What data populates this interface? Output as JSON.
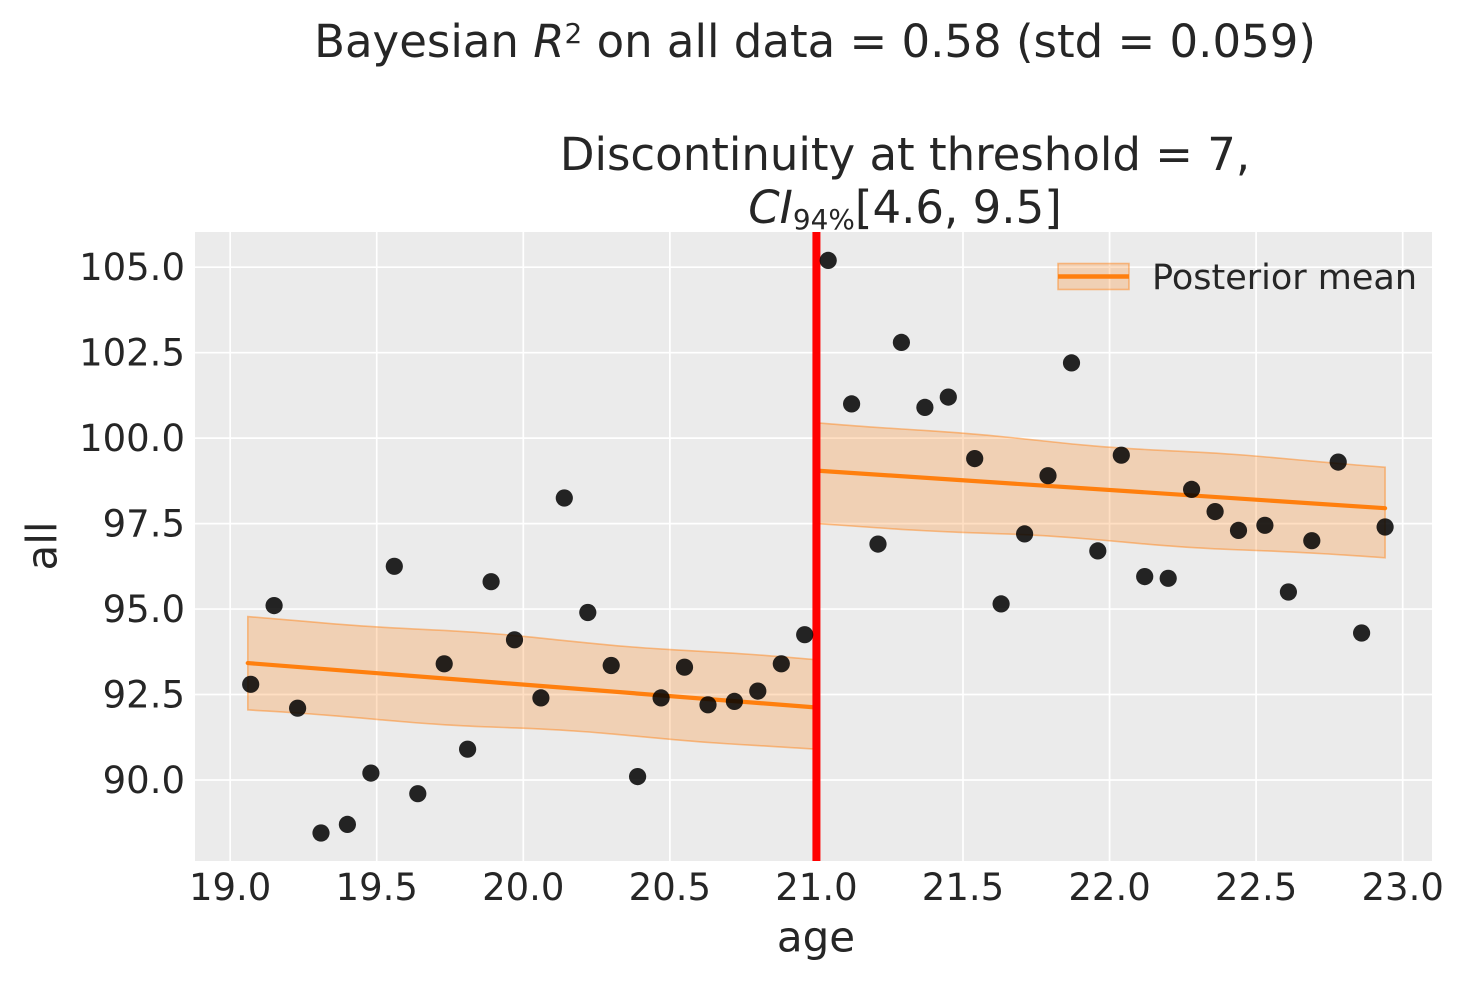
{
  "figure_title": {
    "prefix": "Bayesian ",
    "r_symbol": "R",
    "r_exponent": "2",
    "suffix": " on all data = 0.58 (std = 0.059)"
  },
  "axes_title": {
    "line1": "Discontinuity at threshold = 7,",
    "ci_symbol": "CI",
    "ci_subscript": "94%",
    "ci_interval": "[4.6, 9.5]"
  },
  "legend": {
    "label": "Posterior mean",
    "position": "upper right"
  },
  "chart_data": {
    "type": "scatter",
    "title": "Bayesian R^2 on all data = 0.58 (std = 0.059)",
    "subtitle": "Discontinuity at threshold = 7, CI_94%[4.6, 9.5]",
    "xlabel": "age",
    "ylabel": "all",
    "xlim": [
      18.88,
      23.1
    ],
    "ylim": [
      87.63,
      106.03
    ],
    "x_ticks": [
      19.0,
      19.5,
      20.0,
      20.5,
      21.0,
      21.5,
      22.0,
      22.5,
      23.0
    ],
    "y_ticks": [
      90.0,
      92.5,
      95.0,
      97.5,
      100.0,
      102.5,
      105.0
    ],
    "grid": true,
    "threshold_x": 21.0,
    "scatter_points": [
      [
        19.07,
        92.8
      ],
      [
        19.15,
        95.1
      ],
      [
        19.23,
        92.1
      ],
      [
        19.31,
        88.45
      ],
      [
        19.4,
        88.7
      ],
      [
        19.48,
        90.2
      ],
      [
        19.56,
        96.25
      ],
      [
        19.64,
        89.6
      ],
      [
        19.73,
        93.4
      ],
      [
        19.81,
        90.9
      ],
      [
        19.89,
        95.8
      ],
      [
        19.97,
        94.1
      ],
      [
        20.06,
        92.4
      ],
      [
        20.14,
        98.25
      ],
      [
        20.22,
        94.9
      ],
      [
        20.3,
        93.35
      ],
      [
        20.39,
        90.1
      ],
      [
        20.47,
        92.4
      ],
      [
        20.55,
        93.3
      ],
      [
        20.63,
        92.2
      ],
      [
        20.72,
        92.3
      ],
      [
        20.8,
        92.6
      ],
      [
        20.88,
        93.4
      ],
      [
        20.96,
        94.25
      ],
      [
        21.04,
        105.2
      ],
      [
        21.12,
        101.0
      ],
      [
        21.21,
        96.9
      ],
      [
        21.29,
        102.8
      ],
      [
        21.37,
        100.9
      ],
      [
        21.45,
        101.2
      ],
      [
        21.54,
        99.4
      ],
      [
        21.63,
        95.15
      ],
      [
        21.71,
        97.2
      ],
      [
        21.79,
        98.9
      ],
      [
        21.87,
        102.2
      ],
      [
        21.96,
        96.7
      ],
      [
        22.04,
        99.5
      ],
      [
        22.12,
        95.95
      ],
      [
        22.2,
        95.9
      ],
      [
        22.28,
        98.5
      ],
      [
        22.36,
        97.85
      ],
      [
        22.44,
        97.3
      ],
      [
        22.53,
        97.45
      ],
      [
        22.61,
        95.5
      ],
      [
        22.69,
        97.0
      ],
      [
        22.78,
        99.3
      ],
      [
        22.86,
        94.3
      ],
      [
        22.94,
        97.4
      ]
    ],
    "posterior_mean_segments": [
      {
        "x": [
          19.06,
          21.0
        ],
        "mean": [
          93.42,
          92.12
        ],
        "upper": [
          94.78,
          93.52
        ],
        "lower": [
          92.05,
          90.9
        ]
      },
      {
        "x": [
          21.0,
          22.94
        ],
        "mean": [
          99.05,
          97.95
        ],
        "upper": [
          100.45,
          99.15
        ],
        "lower": [
          97.5,
          96.5
        ]
      }
    ],
    "colors": {
      "scatter": "#000000",
      "posterior_line": "#ff7f0e",
      "posterior_band": "rgba(255,127,14,0.25)",
      "band_edge": "rgba(255,127,14,0.45)",
      "threshold_line": "#ff0000",
      "plot_background": "#ebebeb",
      "gridline": "#ffffff",
      "text": "#262626"
    }
  }
}
